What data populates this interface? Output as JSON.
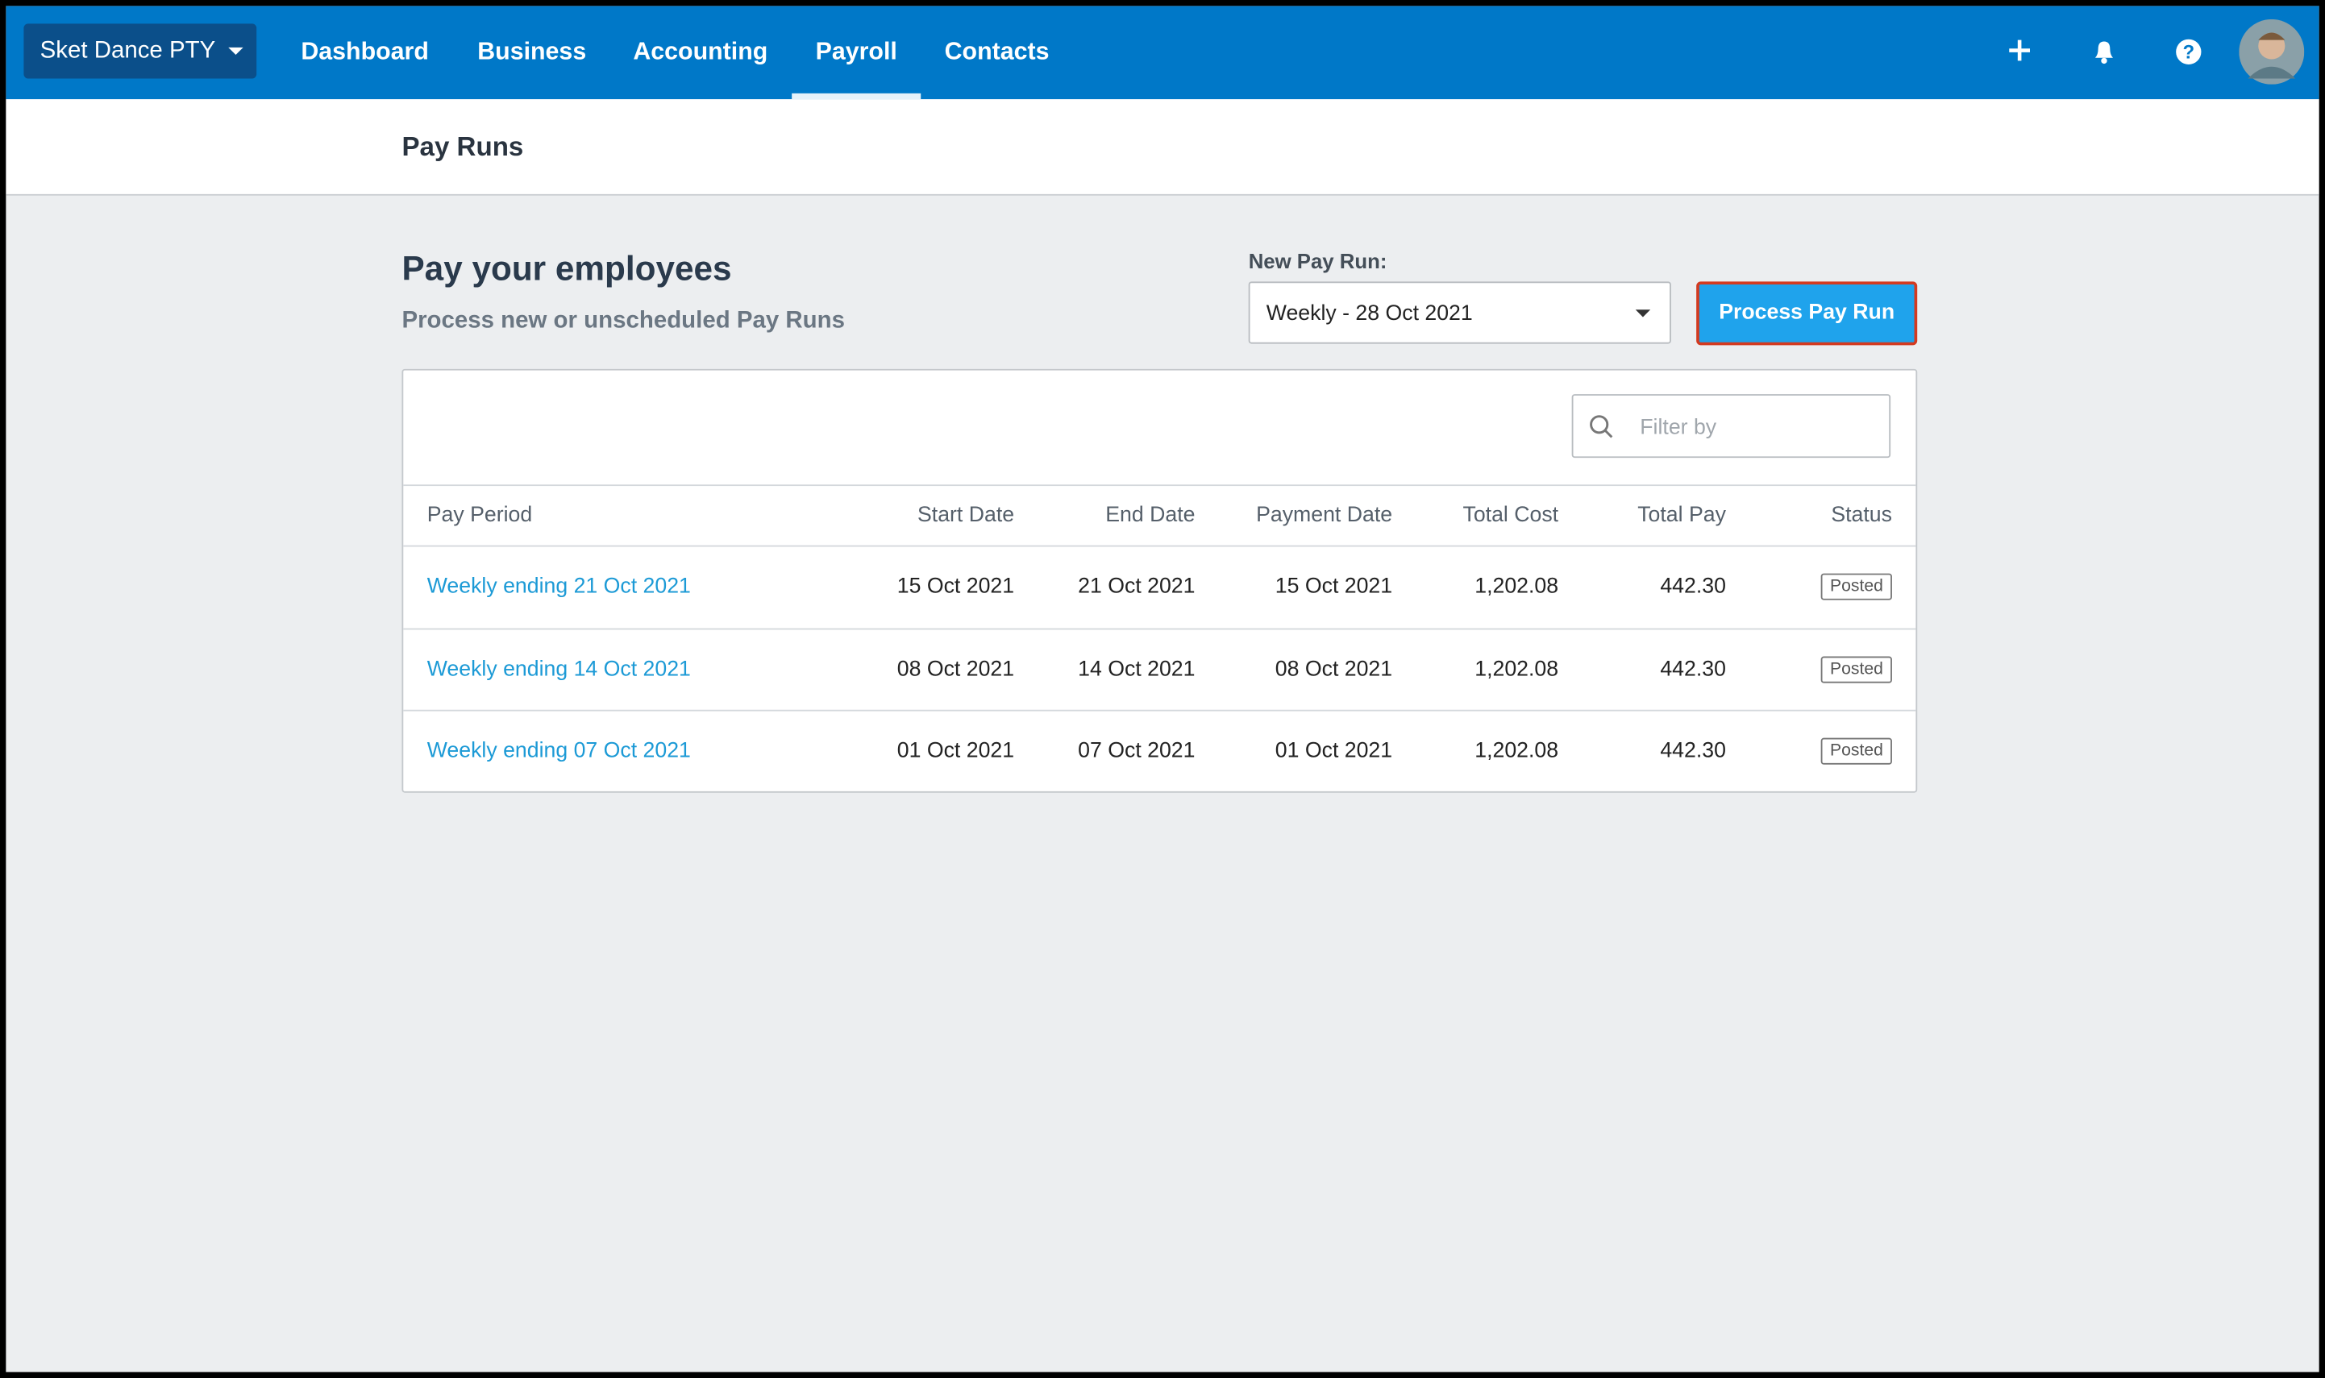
{
  "nav": {
    "org": "Sket Dance PTY",
    "items": [
      "Dashboard",
      "Business",
      "Accounting",
      "Payroll",
      "Contacts"
    ]
  },
  "header": {
    "title": "Pay Runs"
  },
  "intro": {
    "heading": "Pay your employees",
    "subheading": "Process new or unscheduled Pay Runs"
  },
  "new_pay_run": {
    "label": "New Pay Run:",
    "selected": "Weekly - 28 Oct 2021",
    "button": "Process Pay Run"
  },
  "filter": {
    "placeholder": "Filter by"
  },
  "table": {
    "columns": [
      "Pay Period",
      "Start Date",
      "End Date",
      "Payment Date",
      "Total Cost",
      "Total Pay",
      "Status"
    ],
    "rows": [
      [
        "Weekly ending 21 Oct 2021",
        "15 Oct 2021",
        "21 Oct 2021",
        "15 Oct 2021",
        "1,202.08",
        "442.30",
        "Posted"
      ],
      [
        "Weekly ending 14 Oct 2021",
        "08 Oct 2021",
        "14 Oct 2021",
        "08 Oct 2021",
        "1,202.08",
        "442.30",
        "Posted"
      ],
      [
        "Weekly ending 07 Oct 2021",
        "01 Oct 2021",
        "07 Oct 2021",
        "01 Oct 2021",
        "1,202.08",
        "442.30",
        "Posted"
      ]
    ]
  }
}
